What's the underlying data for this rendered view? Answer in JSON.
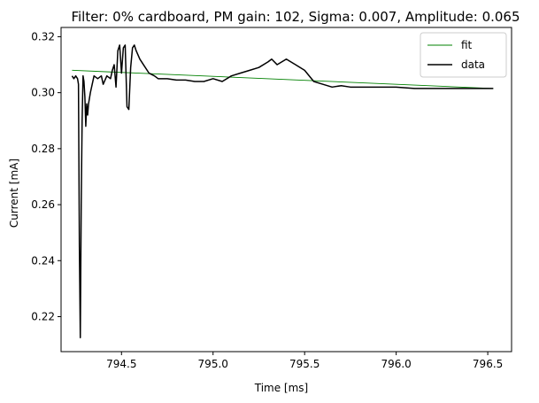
{
  "chart_data": {
    "type": "line",
    "title": "Filter: 0% cardboard, PM gain: 102, Sigma: 0.007, Amplitude: 0.065",
    "xlabel": "Time [ms]",
    "ylabel": "Current [mA]",
    "xlim": [
      794.17,
      796.63
    ],
    "ylim": [
      0.2075,
      0.3233
    ],
    "xticks": [
      794.5,
      795.0,
      795.5,
      796.0,
      796.5
    ],
    "xtick_labels": [
      "794.5",
      "795.0",
      "795.5",
      "796.0",
      "796.5"
    ],
    "yticks": [
      0.22,
      0.24,
      0.26,
      0.28,
      0.3,
      0.32
    ],
    "ytick_labels": [
      "0.22",
      "0.24",
      "0.26",
      "0.28",
      "0.30",
      "0.32"
    ],
    "grid": false,
    "legend_position": "top-right",
    "series": [
      {
        "name": "fit",
        "color": "#008000",
        "x": [
          794.23,
          796.53
        ],
        "y": [
          0.308,
          0.3015
        ]
      },
      {
        "name": "data",
        "color": "#000000",
        "x": [
          794.23,
          794.24,
          794.25,
          794.26,
          794.265,
          794.27,
          794.275,
          794.28,
          794.285,
          794.29,
          794.295,
          794.3,
          794.305,
          794.31,
          794.315,
          794.32,
          794.33,
          794.34,
          794.35,
          794.37,
          794.39,
          794.4,
          794.42,
          794.44,
          794.45,
          794.46,
          794.47,
          794.48,
          794.49,
          794.5,
          794.51,
          794.52,
          794.53,
          794.54,
          794.55,
          794.56,
          794.57,
          794.58,
          794.6,
          794.62,
          794.65,
          794.68,
          794.7,
          794.75,
          794.8,
          794.85,
          794.9,
          794.95,
          795.0,
          795.05,
          795.1,
          795.15,
          795.2,
          795.25,
          795.3,
          795.32,
          795.35,
          795.4,
          795.45,
          795.5,
          795.55,
          795.6,
          795.65,
          795.7,
          795.75,
          795.8,
          795.9,
          796.0,
          796.1,
          796.2,
          796.3,
          796.4,
          796.5,
          796.53
        ],
        "y": [
          0.306,
          0.305,
          0.306,
          0.305,
          0.303,
          0.245,
          0.2125,
          0.26,
          0.29,
          0.306,
          0.304,
          0.2985,
          0.288,
          0.296,
          0.292,
          0.296,
          0.3,
          0.303,
          0.306,
          0.305,
          0.306,
          0.303,
          0.306,
          0.305,
          0.308,
          0.31,
          0.302,
          0.315,
          0.317,
          0.307,
          0.316,
          0.317,
          0.295,
          0.294,
          0.309,
          0.316,
          0.317,
          0.315,
          0.312,
          0.31,
          0.307,
          0.306,
          0.305,
          0.305,
          0.3045,
          0.3045,
          0.304,
          0.304,
          0.305,
          0.304,
          0.306,
          0.307,
          0.308,
          0.309,
          0.311,
          0.312,
          0.31,
          0.312,
          0.31,
          0.308,
          0.304,
          0.303,
          0.302,
          0.3025,
          0.302,
          0.302,
          0.302,
          0.302,
          0.3015,
          0.3015,
          0.3015,
          0.3015,
          0.3015,
          0.3015
        ]
      }
    ]
  }
}
